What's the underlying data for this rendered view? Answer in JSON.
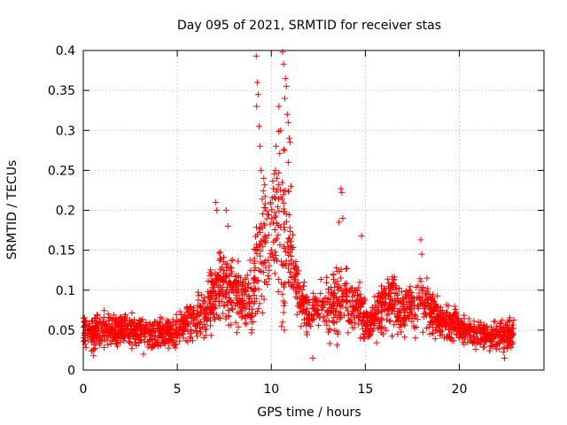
{
  "chart_data": {
    "type": "scatter",
    "title": "Day 095 of 2021, SRMTID for receiver stas",
    "xlabel": "GPS time / hours",
    "ylabel": "SRMTID / TECUs",
    "xlim": [
      0,
      24.5
    ],
    "ylim": [
      0,
      0.4
    ],
    "xticks": [
      0,
      5,
      10,
      15,
      20
    ],
    "yticks": [
      0,
      0.05,
      0.1,
      0.15,
      0.2,
      0.25,
      0.3,
      0.35,
      0.4
    ],
    "xtick_labels": [
      "0",
      "5",
      "10",
      "15",
      "20"
    ],
    "ytick_labels": [
      "0",
      "0.05",
      "0.1",
      "0.15",
      "0.2",
      "0.25",
      "0.3",
      "0.35",
      "0.4"
    ],
    "grid": true,
    "marker": "plus",
    "color": "#ff0000",
    "x_range_of_points": [
      0.0,
      22.9
    ],
    "envelope": {
      "hours": [
        0,
        0.5,
        1,
        2,
        3,
        4,
        5,
        5.5,
        6,
        6.5,
        7,
        7.5,
        8,
        8.5,
        9,
        9.3,
        9.6,
        10,
        10.3,
        10.6,
        11,
        11.5,
        12,
        12.5,
        13,
        13.5,
        14,
        14.5,
        15,
        15.5,
        16,
        16.5,
        17,
        17.5,
        18,
        18.5,
        19,
        19.5,
        20,
        20.5,
        21,
        21.5,
        22,
        22.5,
        22.9
      ],
      "center": [
        0.05,
        0.045,
        0.05,
        0.05,
        0.05,
        0.045,
        0.05,
        0.06,
        0.065,
        0.07,
        0.1,
        0.11,
        0.1,
        0.09,
        0.09,
        0.14,
        0.17,
        0.18,
        0.19,
        0.17,
        0.15,
        0.09,
        0.07,
        0.075,
        0.08,
        0.09,
        0.09,
        0.08,
        0.06,
        0.065,
        0.08,
        0.085,
        0.07,
        0.08,
        0.09,
        0.07,
        0.065,
        0.06,
        0.055,
        0.05,
        0.045,
        0.045,
        0.04,
        0.045,
        0.05
      ],
      "spread": [
        0.02,
        0.02,
        0.025,
        0.022,
        0.02,
        0.02,
        0.022,
        0.028,
        0.03,
        0.03,
        0.045,
        0.045,
        0.04,
        0.035,
        0.05,
        0.08,
        0.1,
        0.07,
        0.09,
        0.1,
        0.06,
        0.035,
        0.03,
        0.03,
        0.035,
        0.05,
        0.04,
        0.03,
        0.03,
        0.03,
        0.035,
        0.035,
        0.03,
        0.035,
        0.035,
        0.03,
        0.025,
        0.025,
        0.02,
        0.02,
        0.02,
        0.02,
        0.02,
        0.02,
        0.02
      ]
    },
    "peak_points": [
      {
        "x": 9.2,
        "y": 0.393
      },
      {
        "x": 9.25,
        "y": 0.36
      },
      {
        "x": 9.3,
        "y": 0.345
      },
      {
        "x": 9.22,
        "y": 0.33
      },
      {
        "x": 9.35,
        "y": 0.305
      },
      {
        "x": 9.4,
        "y": 0.28
      },
      {
        "x": 9.45,
        "y": 0.25
      },
      {
        "x": 9.6,
        "y": 0.24
      },
      {
        "x": 10.4,
        "y": 0.33
      },
      {
        "x": 10.5,
        "y": 0.3
      },
      {
        "x": 10.6,
        "y": 0.398
      },
      {
        "x": 10.65,
        "y": 0.383
      },
      {
        "x": 10.75,
        "y": 0.365
      },
      {
        "x": 10.8,
        "y": 0.355
      },
      {
        "x": 10.72,
        "y": 0.34
      },
      {
        "x": 10.85,
        "y": 0.32
      },
      {
        "x": 10.9,
        "y": 0.31
      },
      {
        "x": 10.95,
        "y": 0.29
      },
      {
        "x": 11.0,
        "y": 0.285
      },
      {
        "x": 10.7,
        "y": 0.275
      },
      {
        "x": 10.9,
        "y": 0.26
      },
      {
        "x": 11.05,
        "y": 0.23
      },
      {
        "x": 10.25,
        "y": 0.28
      },
      {
        "x": 10.3,
        "y": 0.24
      },
      {
        "x": 10.2,
        "y": 0.215
      },
      {
        "x": 13.7,
        "y": 0.227
      },
      {
        "x": 13.75,
        "y": 0.222
      },
      {
        "x": 13.8,
        "y": 0.19
      },
      {
        "x": 13.6,
        "y": 0.185
      },
      {
        "x": 7.05,
        "y": 0.21
      },
      {
        "x": 7.1,
        "y": 0.2
      },
      {
        "x": 7.6,
        "y": 0.2
      },
      {
        "x": 7.7,
        "y": 0.18
      },
      {
        "x": 17.95,
        "y": 0.163
      },
      {
        "x": 18.0,
        "y": 0.145
      },
      {
        "x": 14.8,
        "y": 0.168
      }
    ],
    "low_points": [
      {
        "x": 12.2,
        "y": 0.015
      },
      {
        "x": 8.95,
        "y": 0.06
      },
      {
        "x": 10.7,
        "y": 0.05
      },
      {
        "x": 10.6,
        "y": 0.06
      },
      {
        "x": 10.65,
        "y": 0.072
      },
      {
        "x": 0.55,
        "y": 0.018
      },
      {
        "x": 22.4,
        "y": 0.015
      },
      {
        "x": 3.2,
        "y": 0.02
      }
    ]
  }
}
